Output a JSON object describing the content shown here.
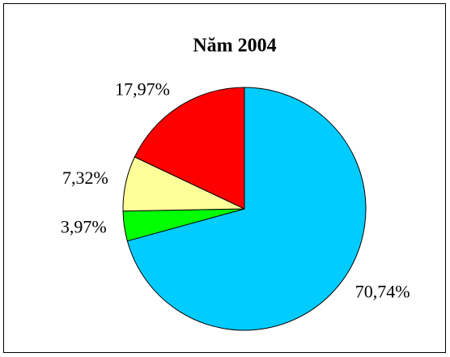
{
  "chart_data": {
    "type": "pie",
    "title": "Năm 2004",
    "values": [
      70.74,
      3.97,
      7.32,
      17.97
    ],
    "value_labels": [
      "70,74%",
      "3,97%",
      "7,32%",
      "17,97%"
    ],
    "colors": [
      "#00ccff",
      "#00ff00",
      "#ffff99",
      "#ff0000"
    ]
  }
}
